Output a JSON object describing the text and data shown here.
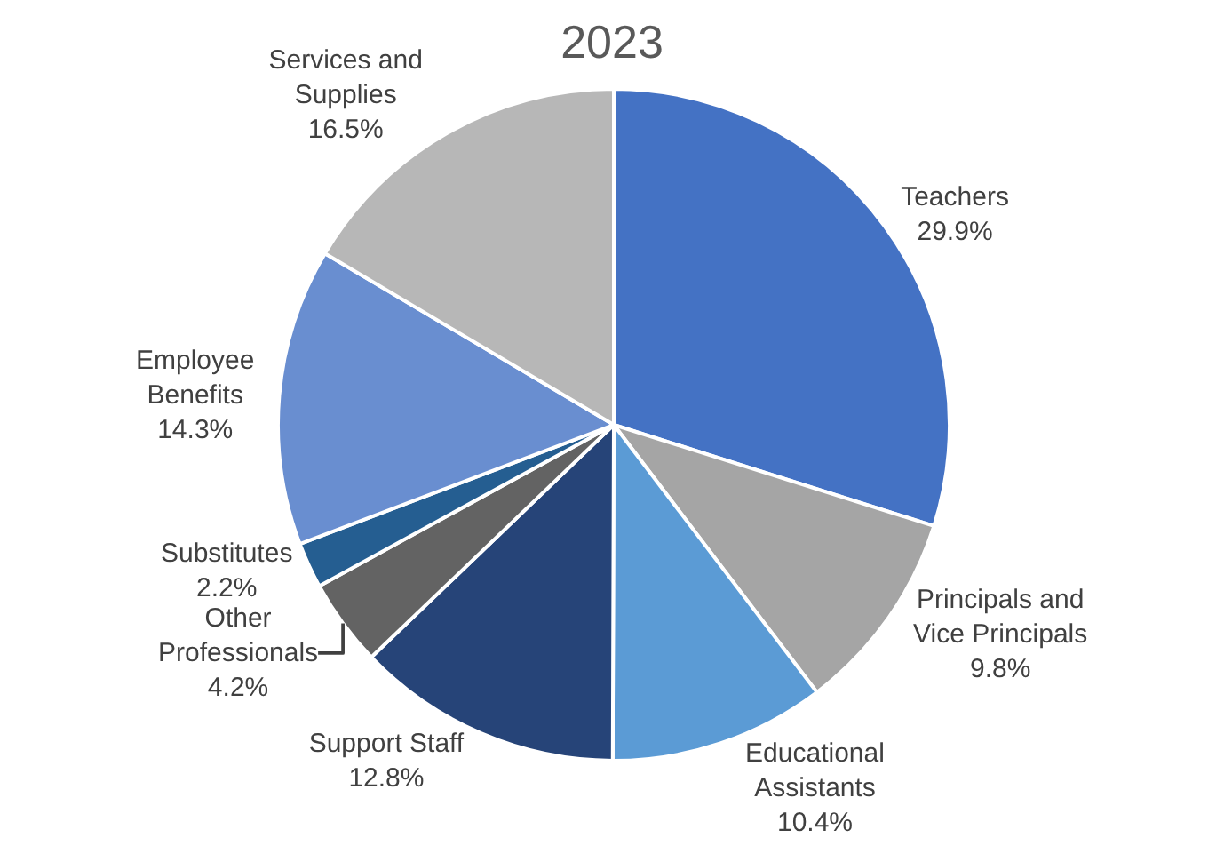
{
  "chart_data": {
    "type": "pie",
    "title": "2023",
    "categories": [
      "Teachers",
      "Principals and Vice Principals",
      "Educational Assistants",
      "Support Staff",
      "Other Professionals",
      "Substitutes",
      "Employee Benefits",
      "Services and Supplies"
    ],
    "values": [
      29.9,
      9.8,
      10.4,
      12.8,
      4.2,
      2.2,
      14.3,
      16.5
    ],
    "value_labels": [
      "29.9%",
      "9.8%",
      "10.4%",
      "12.8%",
      "4.2%",
      "2.2%",
      "14.3%",
      "16.5%"
    ],
    "colors": [
      "#4472c4",
      "#a5a5a5",
      "#5b9bd5",
      "#264478",
      "#636363",
      "#255e91",
      "#698ed0",
      "#b7b7b7"
    ],
    "legend": false
  }
}
